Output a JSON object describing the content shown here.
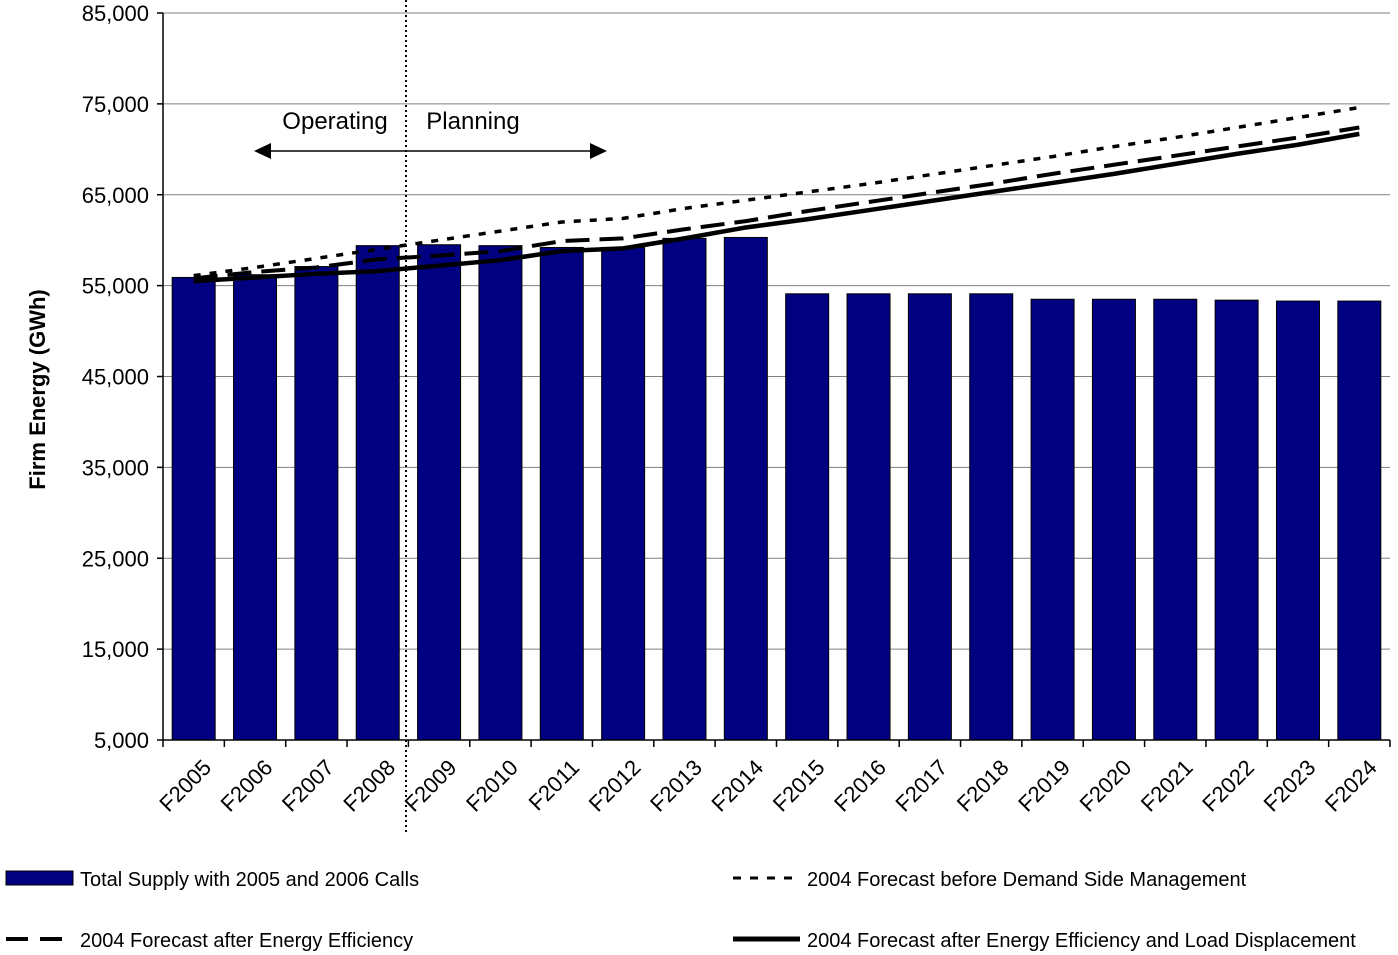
{
  "chart_data": {
    "type": "bar",
    "title": "",
    "xlabel": "",
    "ylabel": "Firm Energy (GWh)",
    "ylim": [
      5000,
      85000
    ],
    "yticks": [
      5000,
      15000,
      25000,
      35000,
      45000,
      55000,
      65000,
      75000,
      85000
    ],
    "ytick_labels": [
      "5,000",
      "15,000",
      "25,000",
      "35,000",
      "45,000",
      "55,000",
      "65,000",
      "75,000",
      "85,000"
    ],
    "grid": "horizontal",
    "legend_placement": "bottom",
    "categories": [
      "F2005",
      "F2006",
      "F2007",
      "F2008",
      "F2009",
      "F2010",
      "F2011",
      "F2012",
      "F2013",
      "F2014",
      "F2015",
      "F2016",
      "F2017",
      "F2018",
      "F2019",
      "F2020",
      "F2021",
      "F2022",
      "F2023",
      "F2024"
    ],
    "bars": {
      "name": "Total Supply with 2005 and 2006 Calls",
      "color": "#000080",
      "values": [
        55900,
        56200,
        57100,
        59400,
        59500,
        59400,
        59200,
        59200,
        60200,
        60300,
        54100,
        54100,
        54100,
        54100,
        53500,
        53500,
        53500,
        53400,
        53300,
        53300
      ]
    },
    "series": [
      {
        "name": "2004 Forecast before Demand Side Management",
        "style": "dotted",
        "values": [
          56100,
          57000,
          58000,
          59000,
          60000,
          61000,
          62000,
          62400,
          63500,
          64400,
          65300,
          66200,
          67200,
          68200,
          69200,
          70300,
          71300,
          72400,
          73500,
          74600
        ]
      },
      {
        "name": "2004 Forecast after Energy Efficiency",
        "style": "dashed",
        "values": [
          55800,
          56500,
          57000,
          57900,
          58300,
          58800,
          59900,
          60200,
          61200,
          62100,
          63200,
          64200,
          65200,
          66200,
          67300,
          68300,
          69300,
          70300,
          71300,
          72400
        ]
      },
      {
        "name": "2004 Forecast after Energy Efficiency and Load Displacement",
        "style": "solid",
        "values": [
          55500,
          55900,
          56300,
          56600,
          57200,
          57800,
          58800,
          59100,
          60200,
          61400,
          62300,
          63300,
          64300,
          65300,
          66300,
          67300,
          68400,
          69500,
          70500,
          71700
        ]
      }
    ],
    "annotations": {
      "left_label": "Operating",
      "right_label": "Planning"
    }
  }
}
